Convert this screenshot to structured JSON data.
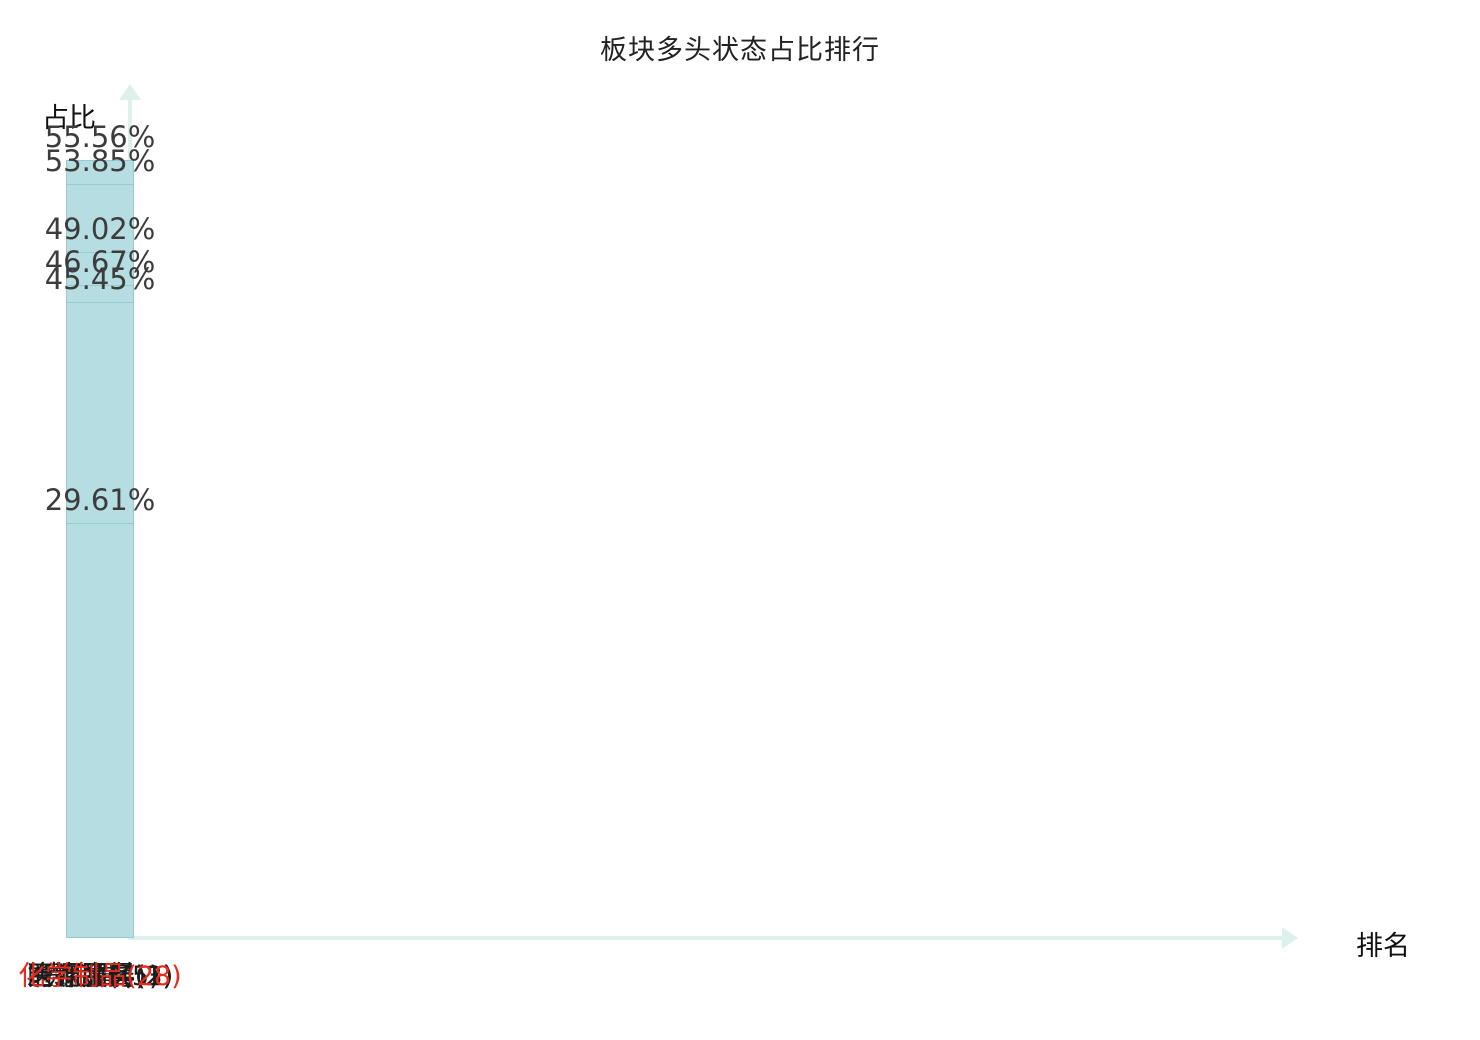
{
  "chart_data": {
    "type": "bar",
    "title": "板块多头状态占比排行",
    "xlabel": "排名",
    "ylabel": "占比",
    "categories": [
      "冶钢原料(1)",
      "能源金属(2)",
      "医疗服务(3)",
      "饰品(4)",
      "贵金属(5)",
      "化学制品(28)"
    ],
    "values": [
      55.56,
      53.85,
      49.02,
      46.67,
      45.45,
      29.61
    ],
    "value_labels": [
      "55.56%",
      "53.85%",
      "49.02%",
      "46.67%",
      "45.45%",
      "29.61%"
    ],
    "ylim": [
      0,
      60
    ],
    "grid": false,
    "legend": "none",
    "bar_color": "#b5dde2",
    "bar_border_color": "#96cbd0",
    "axis_color": "#ddf0ec",
    "label_color": "#3c3c3c",
    "highlight_index": 5,
    "highlight_color": "#e8291c"
  }
}
